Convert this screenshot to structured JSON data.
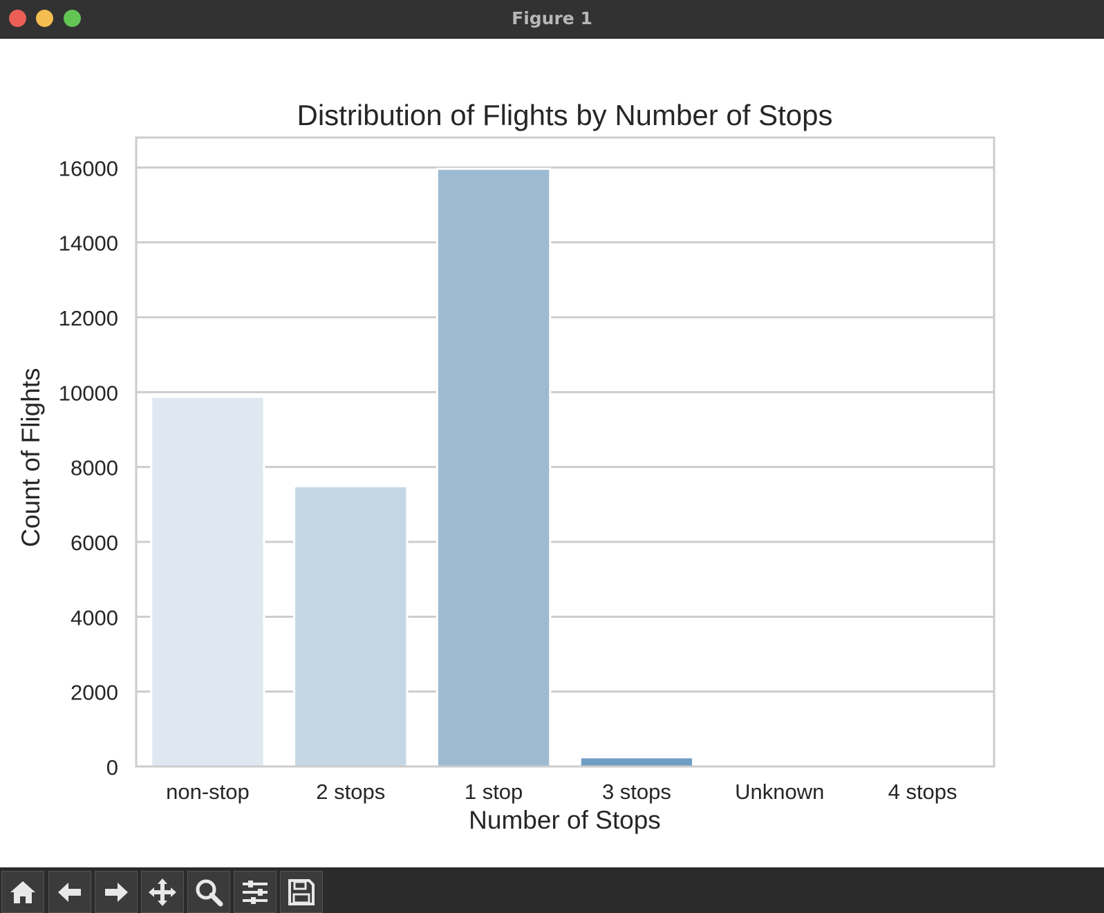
{
  "window": {
    "title": "Figure 1"
  },
  "toolbar": {
    "buttons": [
      {
        "name": "home",
        "icon": "home-icon"
      },
      {
        "name": "back",
        "icon": "arrow-left-icon"
      },
      {
        "name": "forward",
        "icon": "arrow-right-icon"
      },
      {
        "name": "pan",
        "icon": "move-icon"
      },
      {
        "name": "zoom",
        "icon": "magnifier-icon"
      },
      {
        "name": "configure-subplots",
        "icon": "sliders-icon"
      },
      {
        "name": "save",
        "icon": "floppy-disk-icon"
      }
    ]
  },
  "chart_data": {
    "type": "bar",
    "title": "Distribution of Flights by Number of Stops",
    "xlabel": "Number of Stops",
    "ylabel": "Count of Flights",
    "categories": [
      "non-stop",
      "2 stops",
      "1 stop",
      "3 stops",
      "Unknown",
      "4 stops"
    ],
    "values": [
      9875,
      7485,
      15965,
      245,
      0,
      0
    ],
    "colors": [
      "#dfe8f1",
      "#c5d7e5",
      "#9dbad1",
      "#6f9ec5",
      "#4f86bb",
      "#3a73b0"
    ],
    "ylim": [
      0,
      16800
    ],
    "yticks": [
      0,
      2000,
      4000,
      6000,
      8000,
      10000,
      12000,
      14000,
      16000
    ],
    "grid": true,
    "grid_axis": "y"
  }
}
